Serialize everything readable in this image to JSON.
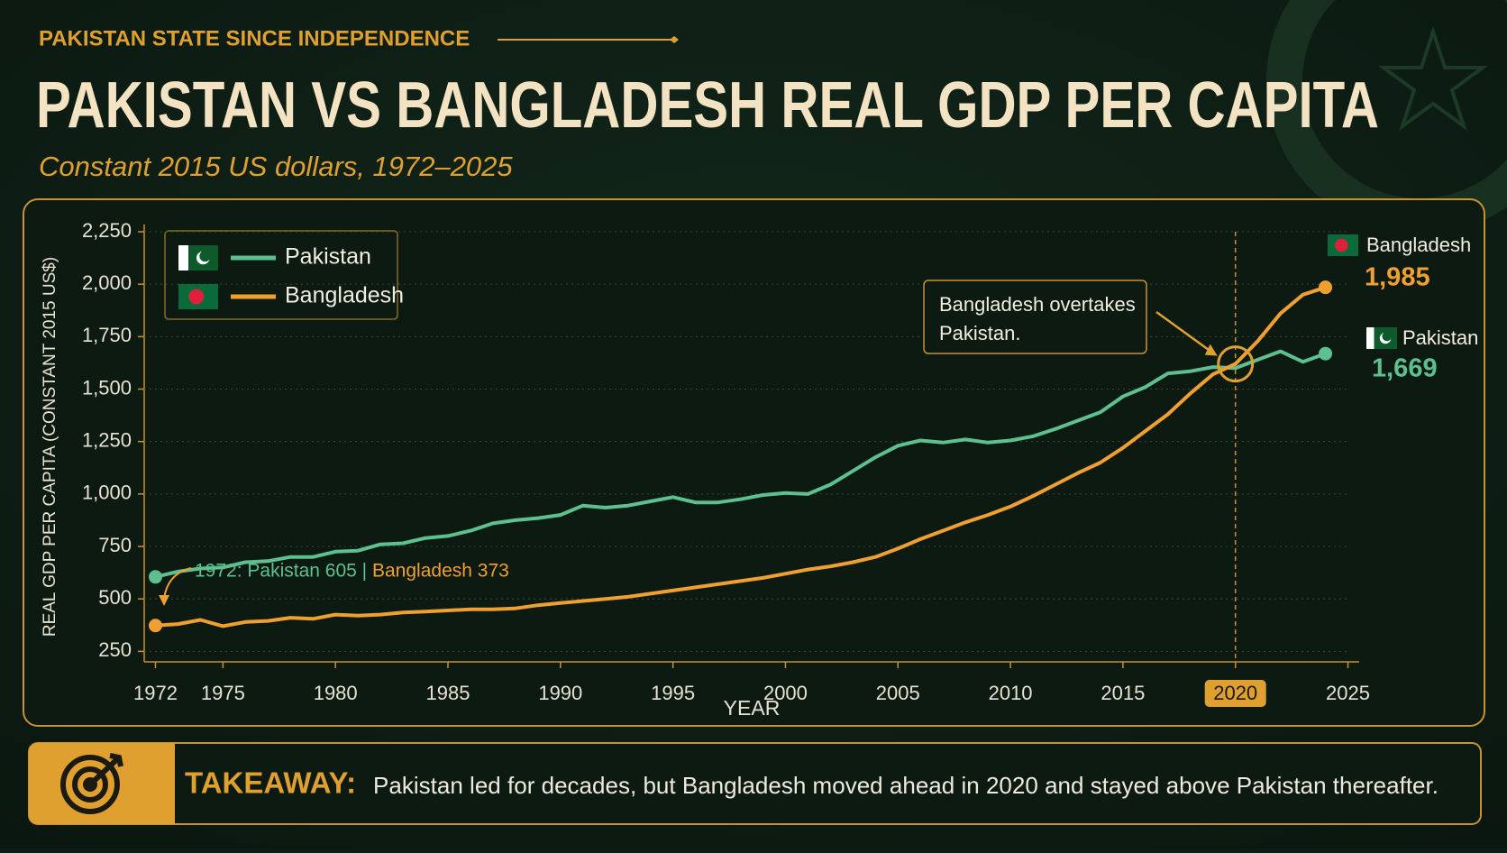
{
  "kicker": "PAKISTAN STATE SINCE INDEPENDENCE",
  "chart_data": {
    "type": "line",
    "title": "PAKISTAN VS BANGLADESH REAL GDP PER CAPITA",
    "subtitle": "Constant 2015 US dollars, 1972–2025",
    "xlabel": "YEAR",
    "ylabel": "REAL GDP PER CAPITA (CONSTANT 2015 US$)",
    "x": [
      1972,
      1973,
      1974,
      1975,
      1976,
      1977,
      1978,
      1979,
      1980,
      1981,
      1982,
      1983,
      1984,
      1985,
      1986,
      1987,
      1988,
      1989,
      1990,
      1991,
      1992,
      1993,
      1994,
      1995,
      1996,
      1997,
      1998,
      1999,
      2000,
      2001,
      2002,
      2003,
      2004,
      2005,
      2006,
      2007,
      2008,
      2009,
      2010,
      2011,
      2012,
      2013,
      2014,
      2015,
      2016,
      2017,
      2018,
      2019,
      2020,
      2021,
      2022,
      2023,
      2024
    ],
    "series": [
      {
        "name": "Pakistan",
        "color": "#5fc08f",
        "values": [
          605,
          630,
          645,
          650,
          675,
          680,
          700,
          700,
          725,
          730,
          760,
          765,
          790,
          800,
          825,
          860,
          875,
          885,
          900,
          945,
          935,
          945,
          965,
          985,
          960,
          960,
          975,
          995,
          1005,
          1000,
          1045,
          1110,
          1175,
          1230,
          1255,
          1245,
          1260,
          1245,
          1255,
          1275,
          1310,
          1350,
          1390,
          1465,
          1510,
          1575,
          1585,
          1605,
          1600,
          1640,
          1680,
          1630,
          1669
        ],
        "value_labels": [
          null,
          null,
          null,
          null,
          null,
          null,
          null,
          null,
          null,
          null,
          null,
          null,
          null,
          null,
          null,
          null,
          null,
          null,
          null,
          null,
          null,
          null,
          null,
          null,
          null,
          null,
          null,
          null,
          null,
          null,
          null,
          null,
          null,
          null,
          null,
          null,
          null,
          null,
          null,
          null,
          null,
          null,
          null,
          null,
          null,
          null,
          null,
          null,
          null,
          null,
          null,
          null,
          "1,669"
        ]
      },
      {
        "name": "Bangladesh",
        "color": "#f0a030",
        "values": [
          373,
          380,
          400,
          370,
          390,
          395,
          410,
          405,
          425,
          420,
          425,
          435,
          440,
          445,
          450,
          450,
          455,
          470,
          480,
          490,
          500,
          510,
          525,
          540,
          555,
          570,
          585,
          600,
          620,
          640,
          655,
          675,
          700,
          740,
          785,
          825,
          865,
          900,
          940,
          990,
          1045,
          1100,
          1150,
          1220,
          1300,
          1380,
          1480,
          1570,
          1620,
          1730,
          1860,
          1950,
          1985
        ],
        "value_labels": [
          null,
          null,
          null,
          null,
          null,
          null,
          null,
          null,
          null,
          null,
          null,
          null,
          null,
          null,
          null,
          null,
          null,
          null,
          null,
          null,
          null,
          null,
          null,
          null,
          null,
          null,
          null,
          null,
          null,
          null,
          null,
          null,
          null,
          null,
          null,
          null,
          null,
          null,
          null,
          null,
          null,
          null,
          null,
          null,
          null,
          null,
          null,
          null,
          null,
          null,
          null,
          null,
          "1,985"
        ]
      }
    ],
    "xlim": [
      1971.5,
      2025.5
    ],
    "xticks": [
      1972,
      1975,
      1980,
      1985,
      1990,
      1995,
      2000,
      2005,
      2010,
      2015,
      2020,
      2025
    ],
    "ylim": [
      200,
      2250
    ],
    "yticks": [
      250,
      500,
      750,
      {
        "value": 1000,
        "label": "1,000"
      },
      {
        "value": 1250,
        "label": "1,250"
      },
      {
        "value": 1500,
        "label": "1,500"
      },
      {
        "value": 1750,
        "label": "1,750"
      },
      {
        "value": 2000,
        "label": "2,000"
      },
      {
        "value": 2250,
        "label": "2,250"
      }
    ],
    "grid": true,
    "legend": "upper left",
    "highlight_x": 2020,
    "annotations": [
      "1972: Pakistan 605 |",
      "Bangladesh 373",
      "Bangladesh overtakes",
      "Pakistan."
    ]
  },
  "takeaway": {
    "label": "TAKEAWAY:",
    "text": "Pakistan led for decades, but Bangladesh moved ahead in 2020 and stayed above Pakistan thereafter."
  }
}
